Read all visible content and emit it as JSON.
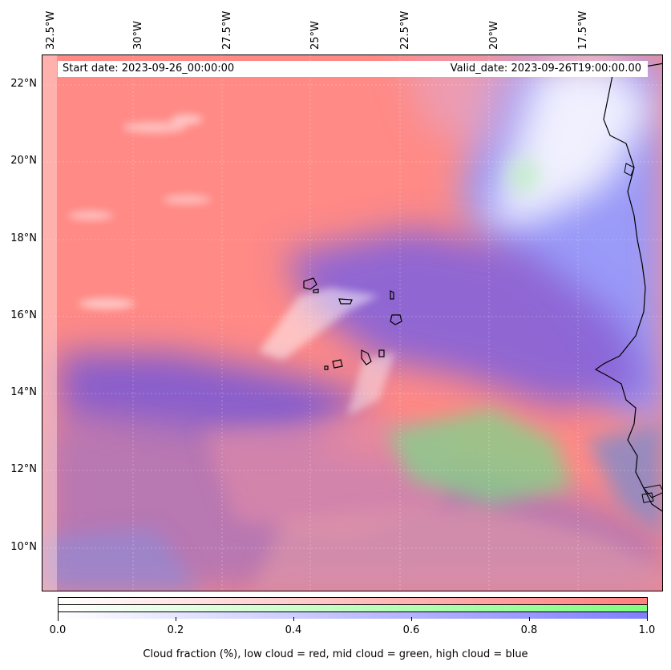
{
  "map": {
    "header": {
      "start_date": "Start date: 2023-09-26_00:00:00",
      "valid_date": "Valid_date: 2023-09-26T19:00:00.00"
    },
    "longitude_labels": [
      "32.5°W",
      "30°W",
      "27.5°W",
      "25°W",
      "22.5°W",
      "20°W",
      "17.5°W"
    ],
    "latitude_labels": [
      "22°N",
      "20°N",
      "18°N",
      "16°N",
      "14°N",
      "12°N",
      "10°N"
    ],
    "layers": [
      {
        "name": "low cloud",
        "color": "#ff7f7f"
      },
      {
        "name": "mid cloud",
        "color": "#7fff7f"
      },
      {
        "name": "high cloud",
        "color": "#7f7fff"
      }
    ]
  },
  "colorbar": {
    "ticks": [
      "0.0",
      "0.2",
      "0.4",
      "0.6",
      "0.8",
      "1.0"
    ],
    "caption": "Cloud fraction (%), low cloud = red, mid cloud = green, high cloud = blue",
    "colors": {
      "low": "#ff7f7f",
      "mid": "#7fff7f",
      "high": "#7f7fff"
    }
  }
}
